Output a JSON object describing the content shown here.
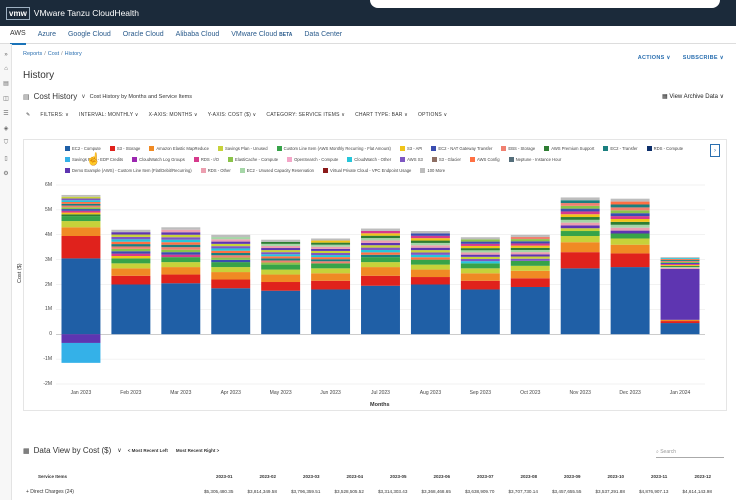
{
  "topbar": {
    "logo": "vmw",
    "brand": "VMware Tanzu CloudHealth"
  },
  "cloud_tabs": [
    {
      "label": "AWS",
      "badge": ""
    },
    {
      "label": "Azure",
      "badge": ""
    },
    {
      "label": "Google Cloud",
      "badge": ""
    },
    {
      "label": "Oracle Cloud",
      "badge": ""
    },
    {
      "label": "Alibaba Cloud",
      "badge": ""
    },
    {
      "label": "VMware Cloud",
      "badge": "BETA"
    },
    {
      "label": "Data Center",
      "badge": ""
    }
  ],
  "breadcrumb": {
    "item1": "Reports",
    "item2": "Cost",
    "item3": "History",
    "sep": "/"
  },
  "page_title": "History",
  "header_links": {
    "actions": "ACTIONS ∨",
    "subscribe": "SUBSCRIBE ∨"
  },
  "subhead": {
    "title": "Cost History",
    "chev": "∨",
    "desc": "Cost History by Months and Service Items"
  },
  "view_archive": "View Archive Data ∨",
  "filters": {
    "filters": "FILTERS: ∨",
    "interval": "INTERVAL: MONTHLY ∨",
    "xaxis": "X-AXIS: MONTHS ∨",
    "yaxis": "Y-AXIS: COST ($) ∨",
    "category": "CATEGORY: SERVICE ITEMS ∨",
    "charttype": "CHART TYPE: BAR ∨",
    "options": "OPTIONS ∨"
  },
  "chart_data": {
    "type": "bar",
    "stacked": true,
    "xlabel": "Months",
    "ylabel": "Cost ($)",
    "ylim": [
      -2000000,
      6000000
    ],
    "yticks": [
      "-2M",
      "-1M",
      "0",
      "1M",
      "2M",
      "3M",
      "4M",
      "5M",
      "6M"
    ],
    "categories": [
      "Jan 2023",
      "Feb 2023",
      "Mar 2023",
      "Apr 2023",
      "May 2023",
      "Jun 2023",
      "Jul 2023",
      "Aug 2023",
      "Sep 2023",
      "Oct 2023",
      "Nov 2023",
      "Dec 2023",
      "Jan 2024"
    ],
    "legend": [
      {
        "name": "EC2 - Compute",
        "color": "#1f5fa6"
      },
      {
        "name": "S3 - Storage",
        "color": "#e0221c"
      },
      {
        "name": "Amazon Elastic MapReduce",
        "color": "#f08a24"
      },
      {
        "name": "Savings Plan - Unused",
        "color": "#c7d23a"
      },
      {
        "name": "Custom Line Item (AWS Monthly Recurring - Flat Amount)",
        "color": "#37a349"
      },
      {
        "name": "S3 - API",
        "color": "#f0c419"
      },
      {
        "name": "EC2 - NAT Gateway Transfer",
        "color": "#3a4db0"
      },
      {
        "name": "EBS - Storage",
        "color": "#f08070"
      },
      {
        "name": "AWS Premium Support",
        "color": "#2e7d32"
      },
      {
        "name": "EC2 - Transfer",
        "color": "#1a7f7f"
      },
      {
        "name": "RDS - Compute",
        "color": "#0d2f6b"
      },
      {
        "name": "Savings Plan - EDP Credits",
        "color": "#34b1e8"
      },
      {
        "name": "CloudWatch Log Groups",
        "color": "#9c27b0"
      },
      {
        "name": "RDS - I/O",
        "color": "#d63a8c"
      },
      {
        "name": "ElastiCache - Compute",
        "color": "#8bc34a"
      },
      {
        "name": "OpenSearch - Compute",
        "color": "#f4a6c8"
      },
      {
        "name": "CloudWatch - Other",
        "color": "#26c6da"
      },
      {
        "name": "AWS S3",
        "color": "#7e57c2"
      },
      {
        "name": "S3 - Glacier",
        "color": "#8d6e63"
      },
      {
        "name": "AWS Config",
        "color": "#ff7043"
      },
      {
        "name": "Neptune - Instance Hour",
        "color": "#546e7a"
      },
      {
        "name": "Demo Example (AWS) - Custom Line Item (Flat/Debit/Recurring)",
        "color": "#5e35b1"
      },
      {
        "name": "RDS - Other",
        "color": "#ec9fb0"
      },
      {
        "name": "EC2 - Unused Capacity Reservation",
        "color": "#a5d6a7"
      },
      {
        "name": "Virtual Private Cloud - VPC Endpoint Usage",
        "color": "#8b1a1a"
      },
      {
        "name": "100 More",
        "color": "#bdbdbd"
      }
    ],
    "totals": [
      5600000,
      4200000,
      4300000,
      4000000,
      3800000,
      3850000,
      4250000,
      4150000,
      3900000,
      4000000,
      5500000,
      5450000,
      3100000
    ],
    "series": [
      {
        "name": "EC2 - Compute",
        "values": [
          3050000,
          2000000,
          2050000,
          1850000,
          1750000,
          1800000,
          1950000,
          2000000,
          1800000,
          1900000,
          2650000,
          2700000,
          450000
        ]
      },
      {
        "name": "S3 - Storage",
        "values": [
          900000,
          350000,
          350000,
          350000,
          350000,
          350000,
          400000,
          300000,
          350000,
          350000,
          650000,
          550000,
          80000
        ]
      },
      {
        "name": "Amazon Elastic MapReduce",
        "values": [
          350000,
          300000,
          300000,
          300000,
          300000,
          300000,
          350000,
          300000,
          300000,
          300000,
          400000,
          350000,
          50000
        ]
      },
      {
        "name": "Savings Plan - Unused",
        "values": [
          250000,
          200000,
          200000,
          200000,
          200000,
          200000,
          200000,
          200000,
          200000,
          200000,
          250000,
          250000,
          0
        ]
      },
      {
        "name": "Custom Line Item (AWS Monthly Recurring - Flat Amount)",
        "values": [
          200000,
          200000,
          200000,
          200000,
          200000,
          200000,
          200000,
          200000,
          200000,
          200000,
          200000,
          200000,
          0
        ]
      },
      {
        "name": "Demo Example (AWS) - Custom Line Item (Flat/Debit/Recurring)",
        "values": [
          -350000,
          0,
          0,
          0,
          0,
          0,
          0,
          0,
          0,
          0,
          0,
          0,
          2050000
        ]
      },
      {
        "name": "Savings Plan - EDP Credits",
        "values": [
          -800000,
          0,
          0,
          0,
          0,
          0,
          0,
          0,
          0,
          0,
          0,
          0,
          0
        ]
      },
      {
        "name": "100 More",
        "values": [
          850000,
          1150000,
          1200000,
          1100000,
          1000000,
          1000000,
          1150000,
          1150000,
          1050000,
          1050000,
          1350000,
          1400000,
          470000
        ]
      }
    ]
  },
  "data_view": {
    "title": "Data View by Cost ($)",
    "chev": "∨",
    "left": "< Most Recent Left",
    "right": "Most Recent Right >",
    "search_placeholder": "Search"
  },
  "table": {
    "header_first": "Service Items",
    "columns": [
      "2023-01",
      "2023-02",
      "2023-03",
      "2023-04",
      "2023-05",
      "2023-06",
      "2023-07",
      "2023-08",
      "2023-09",
      "2023-10",
      "2023-11",
      "2023-12"
    ],
    "row_label": "Direct Charges (24)",
    "row_values": [
      "$5,305,480.35",
      "$3,814,349.58",
      "$3,796,359.51",
      "$3,528,505.52",
      "$3,314,303.43",
      "$3,368,468.65",
      "$3,638,909.70",
      "$3,707,730.14",
      "$3,457,655.55",
      "$3,537,291.88",
      "$4,876,907.13",
      "$4,614,143.98"
    ]
  }
}
